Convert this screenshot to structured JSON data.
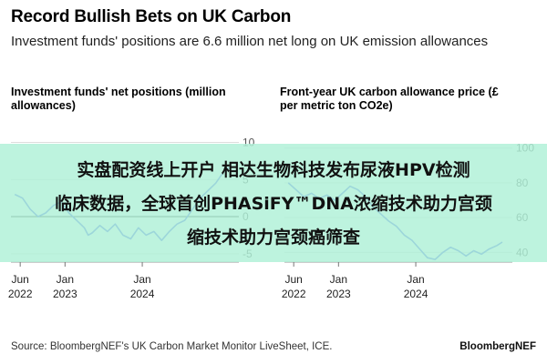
{
  "header": {
    "title": "Record Bullish Bets on UK Carbon",
    "subtitle": "Investment funds' positions are 6.6 million net long on UK emission allowances"
  },
  "overlay": {
    "line1": "实盘配资线上开户 相达生物科技发布尿液HPV检测",
    "line2": "临床数据，全球首创PHASiFY™DNA浓缩技术助力宫颈",
    "line3": "缩技术助力宫颈癌筛查"
  },
  "footer": {
    "source": "Source: BloombergNEF's UK Carbon Market Monitor LiveSheet, ICE.",
    "brand": "BloombergNEF"
  },
  "colors": {
    "line": "#4a5de6",
    "zero_line": "#333333",
    "grid": "#dddddd",
    "banner": "#aff0d7"
  },
  "chart_data": [
    {
      "type": "line",
      "title": "Investment funds' net positions (million allowances)",
      "ylim": [
        -6,
        13
      ],
      "yticks": [
        10,
        5,
        0,
        -5
      ],
      "xlim": [
        2022.3,
        2025.25
      ],
      "xticks": [
        {
          "pos": 2022.42,
          "l1": "Jun",
          "l2": "2022"
        },
        {
          "pos": 2023.0,
          "l1": "Jan",
          "l2": "2023"
        },
        {
          "pos": 2024.0,
          "l1": "Jan",
          "l2": "2024"
        }
      ],
      "series": [
        {
          "name": "Net position",
          "x": [
            2022.35,
            2022.45,
            2022.55,
            2022.65,
            2022.75,
            2022.85,
            2022.95,
            2023.05,
            2023.15,
            2023.25,
            2023.3,
            2023.35,
            2023.45,
            2023.55,
            2023.65,
            2023.75,
            2023.85,
            2023.95,
            2024.05,
            2024.15,
            2024.25,
            2024.35,
            2024.45,
            2024.55,
            2024.65,
            2024.75,
            2024.85,
            2024.95,
            2025.05,
            2025.12
          ],
          "y": [
            3.0,
            2.5,
            1.0,
            0.0,
            0.5,
            1.5,
            2.0,
            0.5,
            -0.5,
            -1.5,
            -2.5,
            -2.2,
            -1.2,
            -2.0,
            -1.0,
            -2.5,
            -3.0,
            -1.5,
            -2.5,
            -2.0,
            -3.2,
            -2.0,
            -1.0,
            -0.5,
            1.0,
            2.5,
            3.5,
            4.5,
            6.0,
            6.6
          ]
        }
      ]
    },
    {
      "type": "line",
      "title": "Front-year UK carbon allowance price (£ per metric ton CO2e)",
      "ylim": [
        35,
        116
      ],
      "yticks": [
        100,
        80,
        60,
        40
      ],
      "xlim": [
        2022.3,
        2025.25
      ],
      "xticks": [
        {
          "pos": 2022.42,
          "l1": "Jun",
          "l2": "2022"
        },
        {
          "pos": 2023.0,
          "l1": "Jan",
          "l2": "2023"
        },
        {
          "pos": 2024.0,
          "l1": "Jan",
          "l2": "2024"
        }
      ],
      "series": [
        {
          "name": "Price",
          "x": [
            2022.35,
            2022.45,
            2022.55,
            2022.65,
            2022.75,
            2022.85,
            2022.95,
            2023.05,
            2023.15,
            2023.25,
            2023.35,
            2023.45,
            2023.55,
            2023.65,
            2023.75,
            2023.85,
            2023.95,
            2024.05,
            2024.15,
            2024.25,
            2024.35,
            2024.45,
            2024.55,
            2024.65,
            2024.75,
            2024.85,
            2024.95,
            2025.05,
            2025.12
          ],
          "y": [
            80,
            76,
            72,
            74,
            71,
            73,
            70,
            74,
            78,
            76,
            72,
            66,
            62,
            58,
            55,
            50,
            47,
            42,
            37,
            36,
            40,
            43,
            41,
            38,
            41,
            39,
            42,
            44,
            46
          ]
        }
      ]
    }
  ]
}
